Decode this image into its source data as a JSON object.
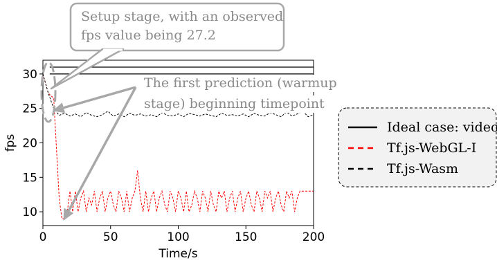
{
  "chart_data": {
    "type": "line",
    "xlabel": "Time/s",
    "ylabel": "fps",
    "xlim": [
      0,
      200
    ],
    "ylim": [
      8,
      32
    ],
    "xticks": [
      0,
      50,
      100,
      150,
      200
    ],
    "yticks": [
      10,
      15,
      20,
      25,
      30
    ],
    "grid": false,
    "legend_placement": "right",
    "series": [
      {
        "name": "Ideal case: video",
        "color": "#000000",
        "style": "solid",
        "x": [
          5,
          200
        ],
        "y": [
          30,
          30
        ]
      },
      {
        "name": "Ideal case: video",
        "color": "#000000",
        "style": "solid",
        "x": [
          5,
          200
        ],
        "y": [
          31,
          31
        ]
      },
      {
        "name": "Tf.js-WebGL-I",
        "color": "#ff0000",
        "style": "dashed",
        "x": [
          0,
          4,
          8,
          12,
          14,
          16,
          18,
          20,
          22,
          24,
          26,
          28,
          30,
          32,
          34,
          36,
          38,
          40,
          42,
          44,
          46,
          48,
          50,
          52,
          54,
          56,
          58,
          60,
          62,
          64,
          66,
          68,
          70,
          72,
          74,
          76,
          78,
          80,
          82,
          84,
          86,
          88,
          90,
          92,
          94,
          96,
          98,
          100,
          102,
          104,
          106,
          108,
          110,
          112,
          114,
          116,
          118,
          120,
          122,
          124,
          126,
          128,
          130,
          132,
          134,
          136,
          138,
          140,
          142,
          144,
          146,
          148,
          150,
          152,
          154,
          156,
          158,
          160,
          162,
          164,
          166,
          168,
          170,
          172,
          174,
          176,
          178,
          180,
          182,
          184,
          186,
          188,
          190,
          192,
          194,
          196,
          198,
          200
        ],
        "y": [
          30,
          27.2,
          26.5,
          12,
          9,
          9,
          10,
          13,
          10,
          13,
          10,
          12,
          13,
          10,
          12,
          11,
          13,
          10,
          12,
          13,
          10,
          12,
          13,
          11,
          10,
          13,
          12,
          10,
          13,
          10,
          12,
          13,
          16,
          12,
          10,
          13,
          10,
          12,
          13,
          10,
          12,
          13,
          11,
          10,
          13,
          12,
          10,
          13,
          12,
          10,
          13,
          10,
          11,
          13,
          12,
          10,
          13,
          12,
          10,
          13,
          11,
          10,
          13,
          12,
          13,
          10,
          12,
          13,
          10,
          12,
          13,
          10,
          12,
          13,
          11,
          10,
          13,
          12,
          10,
          13,
          12,
          13,
          10,
          12,
          13,
          11,
          10,
          13,
          12,
          13,
          10,
          12,
          13,
          13,
          13,
          13,
          13,
          13
        ]
      },
      {
        "name": "Tf.js-Wasm",
        "color": "#000000",
        "style": "dashed",
        "x": [
          0,
          4,
          8,
          12,
          16,
          20,
          24,
          28,
          32,
          36,
          40,
          44,
          48,
          52,
          56,
          60,
          64,
          68,
          72,
          76,
          80,
          84,
          88,
          92,
          96,
          100,
          104,
          108,
          112,
          116,
          120,
          124,
          128,
          132,
          136,
          140,
          144,
          148,
          152,
          156,
          160,
          164,
          168,
          172,
          176,
          180,
          184,
          188,
          192,
          196,
          200
        ],
        "y": [
          30,
          27.2,
          25,
          24,
          24.3,
          23.9,
          24.2,
          23.8,
          24.4,
          24.0,
          23.8,
          24.1,
          24.6,
          23.9,
          24.2,
          23.8,
          24.3,
          24.0,
          24.2,
          23.9,
          24.1,
          23.8,
          24.4,
          24.0,
          23.9,
          24.2,
          23.8,
          24.3,
          24.1,
          23.9,
          24.2,
          24.0,
          23.8,
          24.3,
          24.0,
          24.1,
          23.9,
          24.2,
          23.8,
          24.3,
          24.0,
          23.9,
          24.4,
          24.1,
          23.8,
          24.5,
          23.9,
          24.2,
          24.6,
          23.8,
          24.1
        ]
      }
    ],
    "legend": [
      {
        "label": "Ideal case: video",
        "color": "#000000",
        "style": "solid"
      },
      {
        "label": "Tf.js-WebGL-I",
        "color": "#ff0000",
        "style": "dashed"
      },
      {
        "label": "Tf.js-Wasm",
        "color": "#000000",
        "style": "dashed"
      }
    ],
    "annotations": [
      {
        "lines": [
          "Setup stage, with an observed",
          "fps value being 27.2"
        ],
        "color": "#a0a0a0"
      },
      {
        "lines": [
          "The first prediction (warmup",
          "stage) beginning timepoint"
        ],
        "color": "#a0a0a0"
      }
    ]
  }
}
